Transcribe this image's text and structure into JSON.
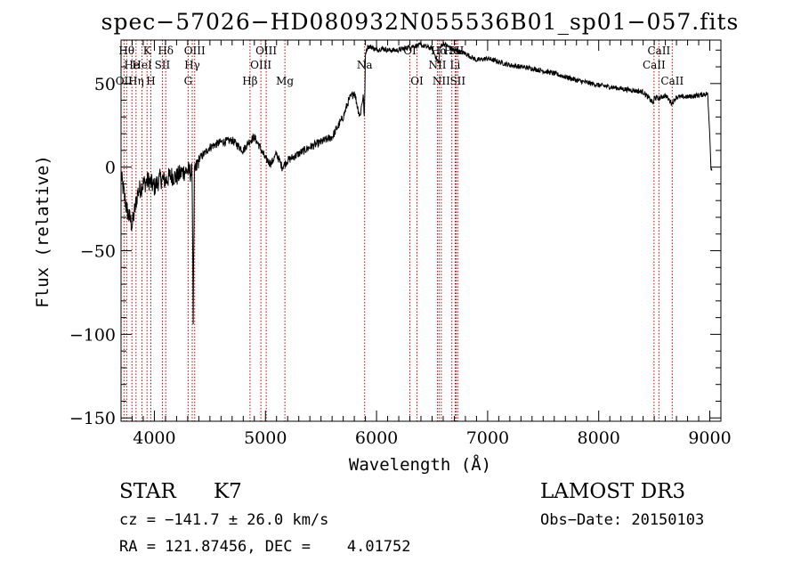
{
  "chart_data": {
    "type": "line",
    "title": "spec−57026−HD080932N055536B01_sp01−057.fits",
    "xlabel": "Wavelength (Å)",
    "ylabel": "Flux (relative)",
    "xlim": [
      3700,
      9100
    ],
    "ylim": [
      -152,
      76
    ],
    "xticks": [
      4000,
      5000,
      6000,
      7000,
      8000,
      9000
    ],
    "xtick_labels": [
      "4000",
      "5000",
      "6000",
      "7000",
      "8000",
      "9000"
    ],
    "yticks": [
      -150,
      -100,
      -50,
      0,
      50
    ],
    "ytick_labels": [
      "−150",
      "−100",
      "−50",
      "0",
      "50"
    ],
    "grid": false,
    "series": [
      {
        "color": "#000000",
        "x": [
          3700,
          3750,
          3800,
          3850,
          3900,
          3950,
          4000,
          4050,
          4100,
          4150,
          4200,
          4250,
          4300,
          4340,
          4350,
          4360,
          4400,
          4450,
          4500,
          4600,
          4700,
          4800,
          4850,
          4900,
          4950,
          5000,
          5050,
          5100,
          5150,
          5200,
          5300,
          5400,
          5500,
          5600,
          5700,
          5750,
          5800,
          5850,
          5880,
          5890,
          5895,
          5900,
          5920,
          5950,
          6000,
          6050,
          6100,
          6200,
          6300,
          6400,
          6500,
          6560,
          6570,
          6600,
          6700,
          6800,
          6900,
          7000,
          7200,
          7400,
          7600,
          7800,
          8000,
          8200,
          8400,
          8495,
          8500,
          8540,
          8600,
          8660,
          8700,
          8800,
          8900,
          8980,
          9000,
          9010,
          9020
        ],
        "y": [
          -5,
          -25,
          -35,
          -15,
          -10,
          -8,
          -12,
          -7,
          -8,
          -5,
          -6,
          -3,
          -2,
          -4,
          -90,
          -5,
          5,
          8,
          12,
          15,
          16,
          10,
          15,
          18,
          12,
          5,
          2,
          8,
          0,
          4,
          8,
          12,
          15,
          18,
          30,
          40,
          45,
          30,
          43,
          30,
          45,
          68,
          72,
          72,
          70,
          71,
          70,
          70,
          72,
          73,
          71,
          62,
          71,
          74,
          70,
          68,
          64,
          65,
          61,
          59,
          56,
          52,
          49,
          47,
          45,
          38,
          42,
          41,
          43,
          38,
          42,
          42,
          43,
          44,
          20,
          0,
          -2
        ]
      }
    ],
    "lines": [
      {
        "wavelength": 3727,
        "label": "OII",
        "row": 3
      },
      {
        "wavelength": 3750,
        "label": "Hθ",
        "row": 1
      },
      {
        "wavelength": 3798,
        "label": "He",
        "row": 2
      },
      {
        "wavelength": 3835,
        "label": "Hη",
        "row": 3
      },
      {
        "wavelength": 3889,
        "label": "HeI",
        "row": 2
      },
      {
        "wavelength": 3934,
        "label": "K",
        "row": 1
      },
      {
        "wavelength": 3968,
        "label": "H",
        "row": 3
      },
      {
        "wavelength": 4072,
        "label": "SII",
        "row": 2
      },
      {
        "wavelength": 4102,
        "label": "Hδ",
        "row": 1
      },
      {
        "wavelength": 4304,
        "label": "G",
        "row": 3
      },
      {
        "wavelength": 4341,
        "label": "Hγ",
        "row": 2
      },
      {
        "wavelength": 4363,
        "label": "OIII",
        "row": 1
      },
      {
        "wavelength": 4861,
        "label": "Hβ",
        "row": 3
      },
      {
        "wavelength": 4959,
        "label": "OIII",
        "row": 2
      },
      {
        "wavelength": 5007,
        "label": "OIII",
        "row": 1
      },
      {
        "wavelength": 5175,
        "label": "Mg",
        "row": 3
      },
      {
        "wavelength": 5893,
        "label": "Na",
        "row": 2
      },
      {
        "wavelength": 6300,
        "label": "OI",
        "row": 1
      },
      {
        "wavelength": 6364,
        "label": "OI",
        "row": 3
      },
      {
        "wavelength": 6548,
        "label": "NII",
        "row": 2
      },
      {
        "wavelength": 6563,
        "label": "Hα",
        "row": 1
      },
      {
        "wavelength": 6583,
        "label": "NII",
        "row": 3
      },
      {
        "wavelength": 6678,
        "label": "He",
        "row": 1
      },
      {
        "wavelength": 6708,
        "label": "Li",
        "row": 2
      },
      {
        "wavelength": 6717,
        "label": "SII",
        "row": 1
      },
      {
        "wavelength": 6731,
        "label": "SII",
        "row": 3
      },
      {
        "wavelength": 8498,
        "label": "CaII",
        "row": 2
      },
      {
        "wavelength": 8542,
        "label": "CaII",
        "row": 1
      },
      {
        "wavelength": 8662,
        "label": "CaII",
        "row": 3
      }
    ],
    "line_color": "#c00000"
  },
  "info": {
    "object_class": "STAR",
    "subclass": "K7",
    "survey": "LAMOST DR3",
    "redshift": "cz = −141.7 ± 26.0 km/s",
    "obs_date": "Obs−Date: 20150103",
    "coords": "RA = 121.87456, DEC =    4.01752"
  }
}
